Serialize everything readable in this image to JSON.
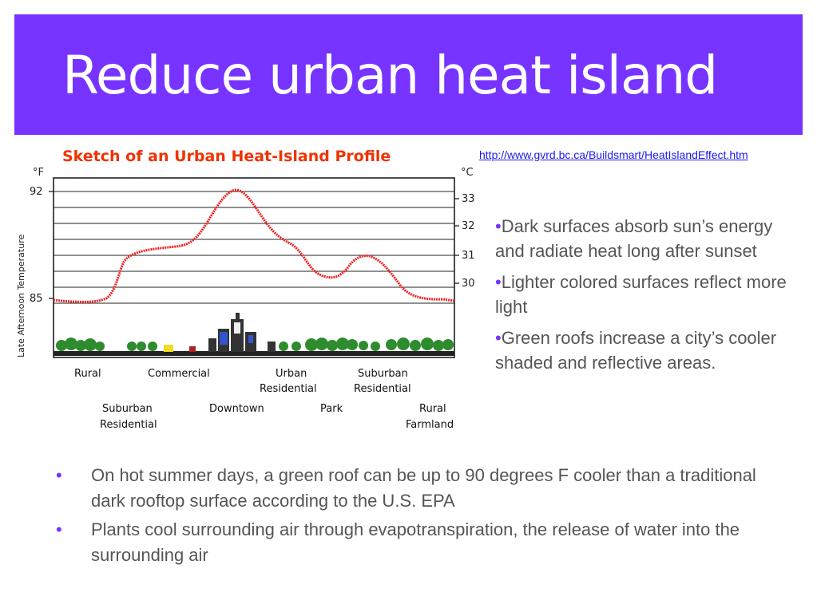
{
  "slide": {
    "title": "Reduce urban heat island",
    "link_text": "http://www.gvrd.bc.ca/Buildsmart/HeatIslandEffect.htm"
  },
  "figure": {
    "title": "Sketch of an Urban Heat-Island Profile",
    "unit_left": "°F",
    "unit_right": "°C",
    "ylabel": "Late Afternoon Temperature",
    "left_ticks": [
      "92",
      "85"
    ],
    "right_ticks": [
      "33",
      "32",
      "31",
      "30"
    ],
    "labels_top": [
      "Rural",
      "Commercial",
      "Urban",
      "Residential",
      "Suburban",
      "Residential"
    ],
    "labels_bottom": [
      "Suburban",
      "Residential",
      "Downtown",
      "Park",
      "Rural",
      "Farmland"
    ],
    "title_color": "#ee3300",
    "curve_color": "#ee2222"
  },
  "right_bullets": {
    "marker": "•",
    "items": [
      "Dark surfaces absorb sun’s energy and radiate heat long after sunset",
      "Lighter colored surfaces reflect more light",
      "Green roofs increase a city’s cooler shaded and reflective areas."
    ]
  },
  "bottom_bullets": {
    "marker": "•",
    "items": [
      "On hot summer days, a green roof can be up to 90 degrees F cooler than a traditional dark rooftop surface according to the U.S. EPA",
      "Plants cool surrounding air through evapotranspiration, the release of water into the surrounding air"
    ]
  }
}
